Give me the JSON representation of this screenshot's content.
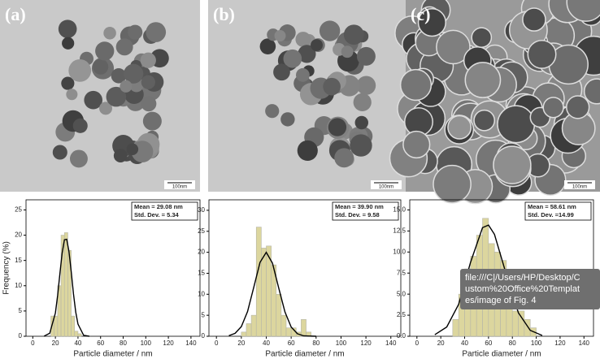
{
  "panels": [
    {
      "label": "(a)",
      "scale_bar": "100nm"
    },
    {
      "label": "(b)",
      "scale_bar": "100nm"
    },
    {
      "label": "(c)",
      "scale_bar": "100nm"
    }
  ],
  "chart_data": [
    {
      "type": "histogram",
      "xlabel": "Particle diameter / nm",
      "ylabel": "Frequency (%)",
      "bins": [
        16,
        19,
        22,
        25,
        28,
        31,
        34,
        37,
        40,
        43
      ],
      "values": [
        4,
        4,
        10,
        20,
        20.5,
        17,
        4,
        1,
        0.5
      ],
      "color": "#dcd69e",
      "fit": {
        "x": [
          10,
          15,
          20,
          22,
          24,
          26,
          28,
          30,
          32,
          34,
          36,
          38,
          40,
          45,
          50
        ],
        "values": [
          0.03,
          0.6,
          4.6,
          8.1,
          12.4,
          16.5,
          19.1,
          19.2,
          16.8,
          12.8,
          8.4,
          4.8,
          2.4,
          0.2,
          0
        ],
        "color": "#000000"
      },
      "annotations": [
        "Mean = 29.08 nm",
        "Std. Dev. = 5.34"
      ],
      "xlim": [
        -6,
        148
      ],
      "xticks": [
        0,
        20,
        40,
        60,
        80,
        100,
        120,
        140
      ],
      "ylim": [
        0,
        27
      ],
      "yticks": [
        0,
        5,
        10,
        15,
        20,
        25
      ]
    },
    {
      "type": "histogram",
      "xlabel": "Particle diameter / nm",
      "bins": [
        20,
        24,
        28,
        32,
        36,
        40,
        44,
        48,
        52,
        56,
        60,
        64,
        68,
        72,
        76
      ],
      "values": [
        1,
        3,
        5,
        26,
        21,
        21.5,
        17,
        10,
        5,
        2,
        2,
        1,
        4,
        1
      ],
      "color": "#dcd69e",
      "fit": {
        "x": [
          10,
          15,
          20,
          25,
          30,
          35,
          40,
          45,
          50,
          55,
          60,
          65,
          70,
          80
        ],
        "values": [
          0.15,
          0.7,
          2.3,
          5.9,
          11.7,
          17.6,
          20,
          17.4,
          11.5,
          5.8,
          2.2,
          0.6,
          0.1,
          0
        ],
        "color": "#000000"
      },
      "annotations": [
        "Mean = 39.90 nm",
        "Std. Dev. = 9.58"
      ],
      "xlim": [
        -6,
        148
      ],
      "xticks": [
        0,
        20,
        40,
        60,
        80,
        100,
        120,
        140
      ],
      "ylim": [
        0,
        32.5
      ],
      "yticks": [
        0,
        5,
        10,
        15,
        20,
        25,
        30
      ]
    },
    {
      "type": "histogram",
      "xlabel": "Particle diameter / nm",
      "bins": [
        30,
        35,
        40,
        45,
        50,
        55,
        60,
        65,
        70,
        75,
        80,
        85,
        90,
        95,
        100
      ],
      "values": [
        2,
        5,
        8,
        9.5,
        12,
        14,
        11,
        10,
        9,
        7,
        3,
        3,
        2,
        1
      ],
      "color": "#dcd69e",
      "fit": {
        "x": [
          15,
          25,
          35,
          45,
          55,
          60,
          65,
          75,
          85,
          95,
          105
        ],
        "values": [
          0.19,
          1.1,
          3.8,
          8.8,
          12.9,
          13.2,
          12.1,
          7.3,
          2.8,
          0.7,
          0.1
        ],
        "color": "#000000"
      },
      "annotations": [
        "Mean = 58.61 nm",
        "Std. Dev. =14.99"
      ],
      "xlim": [
        -6,
        148
      ],
      "xticks": [
        0,
        20,
        40,
        60,
        80,
        100,
        120,
        140
      ],
      "ylim": [
        0,
        16.2
      ],
      "yticks": [
        {
          "value": 0,
          "label": "0.0"
        },
        {
          "value": 2.5,
          "label": "2.5"
        },
        {
          "value": 5,
          "label": "5.0"
        },
        {
          "value": 7.5,
          "label": "7.5"
        },
        {
          "value": 10,
          "label": "10.0"
        },
        {
          "value": 12.5,
          "label": "12.5"
        },
        {
          "value": 15,
          "label": "15.0"
        }
      ]
    }
  ],
  "tooltip": {
    "lines": [
      "file:///C|/Users/HP/Desktop/C",
      "ustom%20Office%20Templat",
      "es/image of Fig. 4"
    ]
  }
}
